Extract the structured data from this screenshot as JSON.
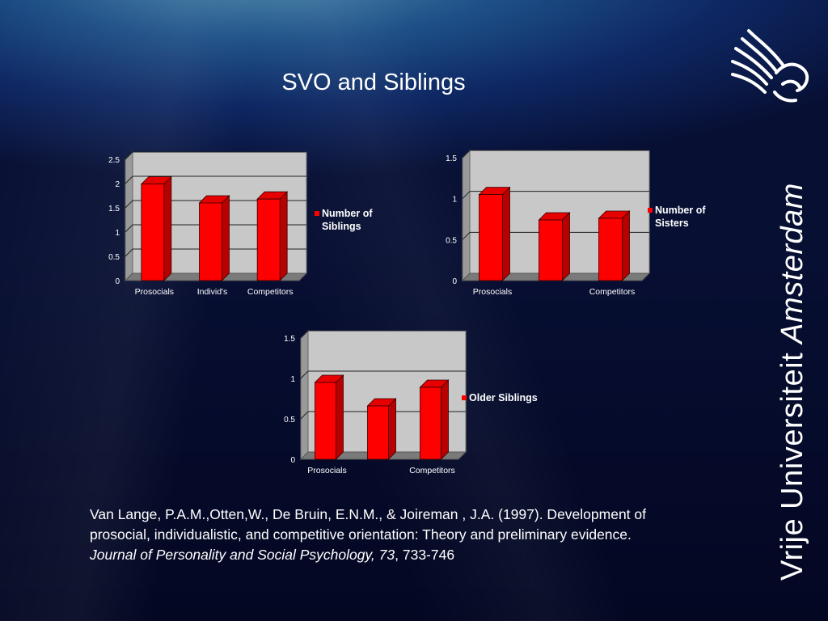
{
  "title": "SVO and Siblings",
  "chart_data": [
    {
      "type": "bar",
      "categories": [
        "Prosocials",
        "Individ's",
        "Competitors"
      ],
      "series": [
        {
          "name": "Number of Siblings",
          "values": [
            1.99,
            1.6,
            1.68
          ]
        }
      ],
      "yticks": [
        "0",
        "0.5",
        "1",
        "1.5",
        "2",
        "2.5"
      ],
      "ylim": [
        0,
        2.5
      ],
      "legend_lines": [
        "Number of",
        "Siblings"
      ],
      "legend": "right",
      "grid": true
    },
    {
      "type": "bar",
      "categories": [
        "Prosocials",
        "",
        "Competitors"
      ],
      "series": [
        {
          "name": "Number of Sisters",
          "values": [
            1.05,
            0.74,
            0.76
          ]
        }
      ],
      "yticks": [
        "0",
        "0.5",
        "1",
        "1.5"
      ],
      "ylim": [
        0,
        1.5
      ],
      "legend_lines": [
        "Number of",
        "Sisters"
      ],
      "legend": "right",
      "grid": true
    },
    {
      "type": "bar",
      "categories": [
        "Prosocials",
        "",
        "Competitors"
      ],
      "series": [
        {
          "name": "Older Siblings",
          "values": [
            0.95,
            0.66,
            0.89
          ]
        }
      ],
      "yticks": [
        "0",
        "0.5",
        "1",
        "1.5"
      ],
      "ylim": [
        0,
        1.5
      ],
      "legend_lines": [
        "Older Siblings"
      ],
      "legend": "right",
      "grid": true
    }
  ],
  "citation": {
    "line1": "Van Lange, P.A.M.,Otten,W., De Bruin, E.N.M., & Joireman , J.A. (1997).  Development of",
    "line2": "prosocial, individualistic, and competitive orientation:  Theory and preliminary evidence.",
    "journal": "Journal of Personality and Social Psychology, 73",
    "pages": ", 733-746"
  },
  "brand": {
    "name": "Vrije Universiteit ",
    "city": "Amsterdam",
    "logo_icon": "griffin-logo-icon"
  },
  "colors": {
    "bar_front": "#ff0000",
    "bar_side": "#b80000",
    "bar_top": "#e60000",
    "plot_bg": "#c8c8c8",
    "plot_wall": "#9a9a9a",
    "floor": "#7a7a7a"
  }
}
